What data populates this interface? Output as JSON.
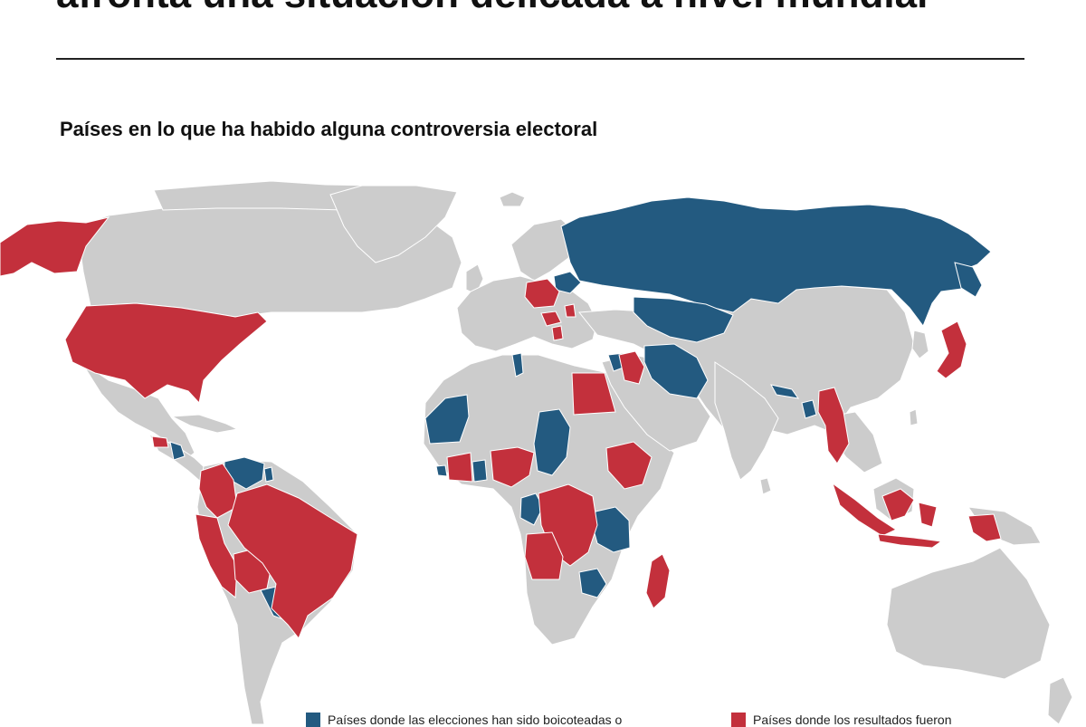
{
  "headline": "afronta una situación delicada a nivel mundial",
  "map_title": "Países en lo que ha habido alguna controversia electoral",
  "colors": {
    "land": "#cccccc",
    "blue": "#235a80",
    "red": "#c3303c",
    "background": "#ffffff",
    "border": "#ffffff"
  },
  "legend": [
    {
      "label": "Países donde las elecciones han sido boicoteadas o",
      "color": "#235a80"
    },
    {
      "label": "Países donde  los resultados fueron",
      "color": "#c3303c"
    }
  ],
  "countries_blue": [
    "Rusia",
    "Bielorrusia",
    "Kazajistán",
    "Irán",
    "Siria",
    "Túnez",
    "Mauritania",
    "Chad",
    "Nepal",
    "Bangladés",
    "Nicaragua",
    "Venezuela",
    "Paraguay",
    "Camerún",
    "Tanzania",
    "Zimbabue"
  ],
  "countries_red": [
    "Estados Unidos",
    "Alaska",
    "Japón",
    "Polonia",
    "Hungría",
    "Serbia",
    "Egipto",
    "Irak",
    "Birmania",
    "Indonesia",
    "Filipinas",
    "Etiopía",
    "Nigeria",
    "Honduras",
    "Colombia",
    "Perú",
    "Bolivia",
    "Brasil",
    "R. D. del Congo",
    "Angola",
    "Madagascar"
  ]
}
